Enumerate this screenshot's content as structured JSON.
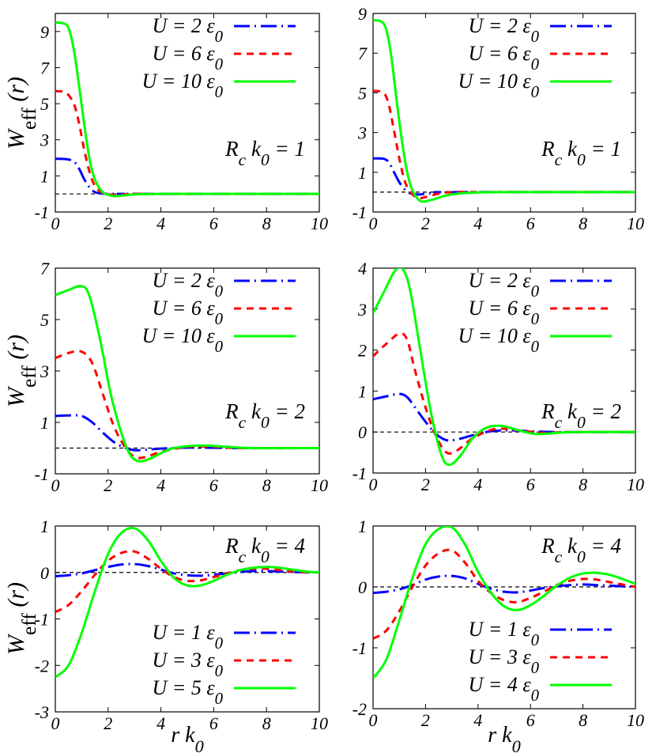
{
  "y_label": "Weff (r)",
  "x_label": "r k0",
  "chart_data": [
    {
      "type": "line",
      "panel": "top-left",
      "xlim": [
        0,
        10
      ],
      "ylim": [
        -1,
        10
      ],
      "xticks": [
        0,
        2,
        4,
        6,
        8,
        10
      ],
      "yticks": [
        -1,
        1,
        3,
        5,
        7,
        9
      ],
      "annotation": "Rc k0 = 1",
      "legend_position": "top-right",
      "zero_line": true,
      "series": [
        {
          "name": "U = 2 ε0",
          "color": "#0000ff",
          "dash": "longdashdot",
          "x": [
            0,
            0.4,
            0.7,
            0.9,
            1.1,
            1.3,
            1.5,
            1.8,
            2.2,
            2.6,
            3,
            10
          ],
          "y": [
            1.95,
            1.93,
            1.8,
            1.4,
            0.8,
            0.35,
            0.1,
            0.02,
            0,
            0,
            0,
            0
          ]
        },
        {
          "name": "U = 6 ε0",
          "color": "#ff0000",
          "dash": "shortdash",
          "x": [
            0,
            0.4,
            0.7,
            0.9,
            1.1,
            1.3,
            1.5,
            1.8,
            2.2,
            2.6,
            3,
            4,
            10
          ],
          "y": [
            5.7,
            5.6,
            5.0,
            3.9,
            2.4,
            1.2,
            0.45,
            0.05,
            -0.05,
            -0.03,
            0,
            0,
            0
          ]
        },
        {
          "name": "U = 10 ε0",
          "color": "#00ff00",
          "dash": "solid",
          "x": [
            0,
            0.3,
            0.5,
            0.7,
            0.9,
            1.1,
            1.3,
            1.5,
            1.8,
            2.2,
            2.6,
            3,
            4,
            5,
            10
          ],
          "y": [
            9.5,
            9.45,
            9.2,
            8.0,
            6.0,
            3.8,
            1.9,
            0.8,
            0.1,
            -0.12,
            -0.08,
            -0.03,
            0,
            0,
            0
          ]
        }
      ]
    },
    {
      "type": "line",
      "panel": "top-right",
      "xlim": [
        0,
        10
      ],
      "ylim": [
        -1,
        9
      ],
      "xticks": [
        0,
        2,
        4,
        6,
        8,
        10
      ],
      "yticks": [
        -1,
        1,
        3,
        5,
        7,
        9
      ],
      "annotation": "Rc k0 = 1",
      "legend_position": "top-right",
      "zero_line": true,
      "series": [
        {
          "name": "U = 2 ε0",
          "color": "#0000ff",
          "dash": "longdashdot",
          "x": [
            0,
            0.4,
            0.6,
            0.8,
            1.0,
            1.2,
            1.4,
            1.7,
            2.0,
            2.5,
            3,
            10
          ],
          "y": [
            1.7,
            1.68,
            1.5,
            1.0,
            0.5,
            0.15,
            -0.05,
            -0.12,
            -0.08,
            -0.02,
            0,
            0
          ]
        },
        {
          "name": "U = 6 ε0",
          "color": "#ff0000",
          "dash": "shortdash",
          "x": [
            0,
            0.4,
            0.6,
            0.8,
            1.0,
            1.2,
            1.4,
            1.7,
            2.0,
            2.5,
            3,
            4,
            10
          ],
          "y": [
            5.1,
            5.0,
            4.4,
            3.1,
            1.7,
            0.6,
            0.05,
            -0.3,
            -0.25,
            -0.08,
            0,
            0,
            0
          ]
        },
        {
          "name": "U = 10 ε0",
          "color": "#00ff00",
          "dash": "solid",
          "x": [
            0,
            0.3,
            0.5,
            0.7,
            0.9,
            1.1,
            1.3,
            1.5,
            1.8,
            2.2,
            2.7,
            3.2,
            4,
            5,
            10
          ],
          "y": [
            8.65,
            8.6,
            8.2,
            6.8,
            4.6,
            2.6,
            1.0,
            0.1,
            -0.45,
            -0.4,
            -0.2,
            -0.08,
            -0.02,
            0,
            0
          ]
        }
      ]
    },
    {
      "type": "line",
      "panel": "middle-left",
      "xlim": [
        0,
        10
      ],
      "ylim": [
        -1,
        7
      ],
      "xticks": [
        0,
        2,
        4,
        6,
        8,
        10
      ],
      "yticks": [
        -1,
        1,
        3,
        5,
        7
      ],
      "annotation": "Rc k0 = 2",
      "legend_position": "top-right",
      "zero_line": true,
      "series": [
        {
          "name": "U = 2 ε0",
          "color": "#0000ff",
          "dash": "longdashdot",
          "x": [
            0,
            0.5,
            1.0,
            1.4,
            1.8,
            2.2,
            2.6,
            3.0,
            3.5,
            4.0,
            5,
            6,
            7,
            10
          ],
          "y": [
            1.25,
            1.27,
            1.25,
            1.0,
            0.6,
            0.25,
            0.03,
            -0.08,
            -0.06,
            -0.02,
            0.02,
            0.01,
            0,
            0
          ]
        },
        {
          "name": "U = 6 ε0",
          "color": "#ff0000",
          "dash": "shortdash",
          "x": [
            0,
            0.5,
            1.0,
            1.4,
            1.8,
            2.2,
            2.6,
            3.0,
            3.4,
            4.0,
            5,
            6,
            7,
            10
          ],
          "y": [
            3.5,
            3.7,
            3.75,
            3.3,
            2.1,
            0.9,
            0.1,
            -0.35,
            -0.35,
            -0.15,
            0.05,
            0.05,
            0,
            0
          ]
        },
        {
          "name": "U = 10 ε0",
          "color": "#00ff00",
          "dash": "solid",
          "x": [
            0,
            0.5,
            1.0,
            1.3,
            1.7,
            2.1,
            2.5,
            2.8,
            3.1,
            3.5,
            4.0,
            4.5,
            5.5,
            6.5,
            7.5,
            10
          ],
          "y": [
            5.95,
            6.15,
            6.3,
            5.9,
            4.2,
            2.1,
            0.6,
            -0.2,
            -0.5,
            -0.45,
            -0.2,
            0,
            0.1,
            0.05,
            0,
            0
          ]
        }
      ]
    },
    {
      "type": "line",
      "panel": "middle-right",
      "xlim": [
        0,
        10
      ],
      "ylim": [
        -1,
        4
      ],
      "xticks": [
        0,
        2,
        4,
        6,
        8,
        10
      ],
      "yticks": [
        -1,
        0,
        1,
        2,
        3,
        4
      ],
      "annotation": "Rc k0 = 2",
      "legend_position": "top-right",
      "zero_line": true,
      "series": [
        {
          "name": "U = 2 ε0",
          "color": "#0000ff",
          "dash": "longdashdot",
          "x": [
            0,
            0.5,
            1.0,
            1.3,
            1.6,
            2.0,
            2.4,
            2.8,
            3.2,
            3.8,
            4.5,
            5.2,
            6,
            7,
            10
          ],
          "y": [
            0.8,
            0.87,
            0.93,
            0.85,
            0.6,
            0.25,
            -0.05,
            -0.2,
            -0.18,
            -0.08,
            0.02,
            0.04,
            0.02,
            0,
            0
          ]
        },
        {
          "name": "U = 6 ε0",
          "color": "#ff0000",
          "dash": "shortdash",
          "x": [
            0,
            0.5,
            1.0,
            1.3,
            1.6,
            2.0,
            2.4,
            2.8,
            3.2,
            3.8,
            4.5,
            5.0,
            5.8,
            6.5,
            7.5,
            10
          ],
          "y": [
            1.85,
            2.15,
            2.4,
            2.25,
            1.5,
            0.6,
            -0.1,
            -0.5,
            -0.45,
            -0.15,
            0.05,
            0.08,
            0.02,
            -0.02,
            0,
            0
          ]
        },
        {
          "name": "U = 10 ε0",
          "color": "#00ff00",
          "dash": "solid",
          "x": [
            0,
            0.4,
            0.8,
            1.1,
            1.4,
            1.8,
            2.2,
            2.6,
            2.9,
            3.3,
            3.8,
            4.3,
            4.9,
            5.5,
            6.2,
            7.0,
            7.8,
            10
          ],
          "y": [
            2.9,
            3.4,
            3.9,
            4.0,
            3.5,
            2.0,
            0.5,
            -0.55,
            -0.8,
            -0.6,
            -0.15,
            0.1,
            0.15,
            0.05,
            -0.05,
            -0.02,
            0,
            0
          ]
        }
      ]
    },
    {
      "type": "line",
      "panel": "bottom-left",
      "xlim": [
        0,
        10
      ],
      "ylim": [
        -3,
        1
      ],
      "xticks": [
        0,
        2,
        4,
        6,
        8,
        10
      ],
      "yticks": [
        -3,
        -2,
        -1,
        0,
        1
      ],
      "annotation": "Rc k0 = 4",
      "legend_position": "bottom-right",
      "zero_line": true,
      "series": [
        {
          "name": "U = 1 ε0",
          "color": "#0000ff",
          "dash": "longdashdot",
          "x": [
            0,
            0.5,
            1,
            1.5,
            2,
            2.5,
            3,
            3.5,
            4,
            4.5,
            5,
            5.5,
            6,
            6.5,
            7,
            7.5,
            8,
            8.5,
            9,
            10
          ],
          "y": [
            -0.08,
            -0.06,
            -0.02,
            0.05,
            0.12,
            0.17,
            0.18,
            0.14,
            0.06,
            -0.02,
            -0.06,
            -0.07,
            -0.05,
            -0.02,
            0.01,
            0.03,
            0.03,
            0.02,
            0.01,
            0
          ]
        },
        {
          "name": "U = 3 ε0",
          "color": "#ff0000",
          "dash": "shortdash",
          "x": [
            0,
            0.5,
            1,
            1.5,
            2,
            2.5,
            3,
            3.5,
            4,
            4.5,
            5,
            5.5,
            6,
            6.5,
            7,
            7.5,
            8,
            8.5,
            9,
            10
          ],
          "y": [
            -0.85,
            -0.7,
            -0.4,
            -0.05,
            0.25,
            0.42,
            0.45,
            0.3,
            0.08,
            -0.1,
            -0.18,
            -0.17,
            -0.1,
            -0.02,
            0.05,
            0.08,
            0.08,
            0.05,
            0.02,
            0
          ]
        },
        {
          "name": "U = 5 ε0",
          "color": "#00ff00",
          "dash": "solid",
          "x": [
            0,
            0.5,
            1,
            1.5,
            2,
            2.5,
            3,
            3.5,
            4,
            4.5,
            5,
            5.5,
            6,
            6.5,
            7,
            7.5,
            8,
            8.5,
            9,
            9.5,
            10
          ],
          "y": [
            -2.25,
            -2.0,
            -1.3,
            -0.4,
            0.4,
            0.85,
            0.95,
            0.7,
            0.25,
            -0.12,
            -0.28,
            -0.28,
            -0.18,
            -0.05,
            0.05,
            0.1,
            0.12,
            0.1,
            0.06,
            0.02,
            0
          ]
        }
      ]
    },
    {
      "type": "line",
      "panel": "bottom-right",
      "xlim": [
        0,
        10
      ],
      "ylim": [
        -2,
        1
      ],
      "xticks": [
        0,
        2,
        4,
        6,
        8,
        10
      ],
      "yticks": [
        -2,
        -1,
        0,
        1
      ],
      "annotation": "Rc k0 = 4",
      "legend_position": "bottom-right",
      "zero_line": true,
      "series": [
        {
          "name": "U = 1 ε0",
          "color": "#0000ff",
          "dash": "longdashdot",
          "x": [
            0,
            0.5,
            1,
            1.5,
            2,
            2.5,
            3,
            3.5,
            4,
            4.5,
            5,
            5.5,
            6,
            6.5,
            7,
            7.5,
            8,
            8.5,
            9,
            10
          ],
          "y": [
            -0.1,
            -0.08,
            -0.04,
            0.03,
            0.12,
            0.17,
            0.18,
            0.14,
            0.05,
            -0.03,
            -0.08,
            -0.09,
            -0.06,
            -0.02,
            0.01,
            0.03,
            0.04,
            0.03,
            0.02,
            0
          ]
        },
        {
          "name": "U = 3 ε0",
          "color": "#ff0000",
          "dash": "shortdash",
          "x": [
            0,
            0.5,
            1,
            1.5,
            2,
            2.5,
            3,
            3.5,
            4,
            4.5,
            5,
            5.5,
            6,
            6.5,
            7,
            7.5,
            8,
            8.5,
            9,
            10
          ],
          "y": [
            -0.85,
            -0.72,
            -0.4,
            0.0,
            0.35,
            0.55,
            0.6,
            0.4,
            0.1,
            -0.1,
            -0.22,
            -0.25,
            -0.18,
            -0.08,
            0.03,
            0.1,
            0.13,
            0.12,
            0.08,
            0
          ]
        },
        {
          "name": "U = 4 ε0",
          "color": "#00ff00",
          "dash": "solid",
          "x": [
            0,
            0.5,
            1,
            1.5,
            2,
            2.5,
            3,
            3.5,
            4,
            4.5,
            5,
            5.5,
            6,
            6.5,
            7,
            7.5,
            8,
            8.5,
            9,
            9.5,
            10
          ],
          "y": [
            -1.5,
            -1.2,
            -0.55,
            0.15,
            0.7,
            0.95,
            0.98,
            0.7,
            0.25,
            -0.1,
            -0.32,
            -0.38,
            -0.3,
            -0.15,
            0.02,
            0.15,
            0.22,
            0.23,
            0.2,
            0.13,
            0.05
          ]
        }
      ]
    }
  ]
}
